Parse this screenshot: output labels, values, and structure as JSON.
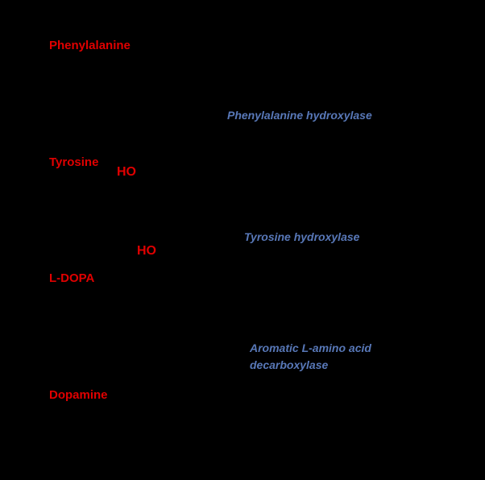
{
  "compounds": {
    "phenylalanine": "Phenylalanine",
    "tyrosine": "Tyrosine",
    "ldopa": "L-DOPA",
    "dopamine": "Dopamine"
  },
  "groups": {
    "tyrosine_ho": "HO",
    "ldopa_ho": "HO"
  },
  "enzymes": {
    "phenylalanine_hydroxylase": "Phenylalanine hydroxylase",
    "tyrosine_hydroxylase": "Tyrosine hydroxylase",
    "aadc_line1": "Aromatic L-amino acid",
    "aadc_line2": "decarboxylase"
  },
  "colors": {
    "background": "#000000",
    "compound_label": "#e00000",
    "enzyme_label": "#5878b8"
  }
}
